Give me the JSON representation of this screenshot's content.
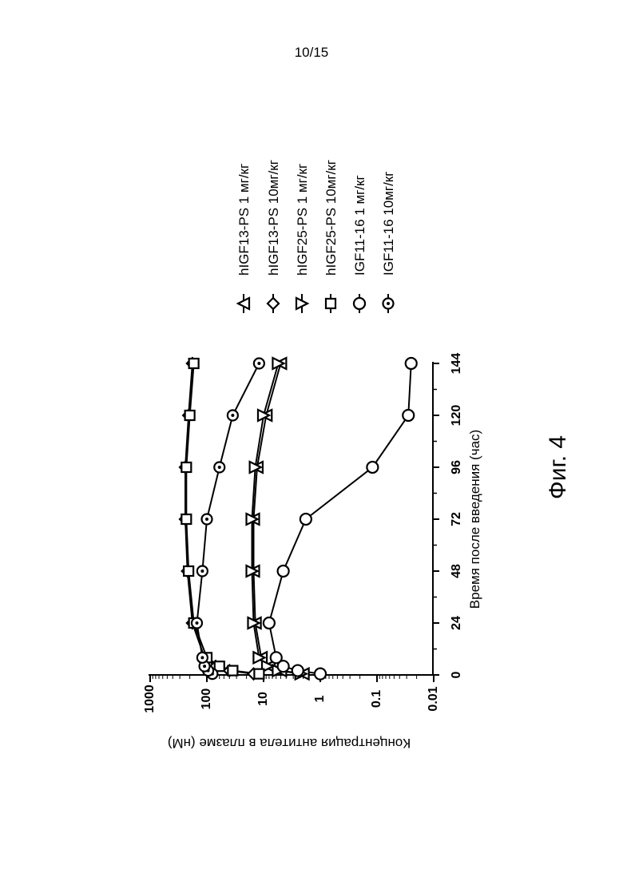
{
  "page_number": "10/15",
  "figure_label": "Фиг. 4",
  "chart_data": {
    "type": "line",
    "title": "",
    "xlabel": "Время после введения (час)",
    "ylabel": "Концентрация антитела в плазме (нМ)",
    "y_scale": "log",
    "xlim": [
      0,
      144
    ],
    "ylim": [
      0.01,
      1000
    ],
    "x_ticks": [
      "0",
      "24",
      "48",
      "72",
      "96",
      "120",
      "144"
    ],
    "y_ticks": [
      "0.01",
      "0.1",
      "1",
      "10",
      "100",
      "1000"
    ],
    "x_tick_values": [
      0,
      24,
      48,
      72,
      96,
      120,
      144
    ],
    "y_tick_values": [
      0.01,
      0.1,
      1,
      10,
      100,
      1000
    ],
    "legend_position": "right",
    "orientation": "rotated-90-ccw",
    "series": [
      {
        "name": "hIGF13-PS 1 мг/кг",
        "marker": "triangle-up",
        "x": [
          0.5,
          2,
          4,
          8,
          24,
          48,
          72,
          96,
          120,
          144
        ],
        "y": [
          2.0,
          5.0,
          8.0,
          11.0,
          14.0,
          15.0,
          15.0,
          13.0,
          9.0,
          5.0
        ]
      },
      {
        "name": "hIGF13-PS 10мг/кг",
        "marker": "diamond",
        "x": [
          0.5,
          2,
          4,
          8,
          24,
          48,
          72,
          96,
          120,
          144
        ],
        "y": [
          15.0,
          40.0,
          70.0,
          110.0,
          180.0,
          220.0,
          240.0,
          240.0,
          210.0,
          180.0
        ]
      },
      {
        "name": "hIGF25-PS 1 мг/кг",
        "marker": "triangle-down",
        "x": [
          0.5,
          2,
          4,
          8,
          24,
          48,
          72,
          96,
          120,
          144
        ],
        "y": [
          2.2,
          5.5,
          8.5,
          12.0,
          15.0,
          16.0,
          16.0,
          14.0,
          10.0,
          5.5
        ]
      },
      {
        "name": "hIGF25-PS 10мг/кг",
        "marker": "square",
        "x": [
          0.5,
          2,
          4,
          8,
          24,
          48,
          72,
          96,
          120,
          144
        ],
        "y": [
          12.0,
          35.0,
          60.0,
          100.0,
          170.0,
          210.0,
          230.0,
          230.0,
          200.0,
          170.0
        ]
      },
      {
        "name": "IGF11-16 1 мг/кг",
        "marker": "circle",
        "x": [
          0.5,
          2,
          4,
          8,
          24,
          48,
          72,
          96,
          120,
          144
        ],
        "y": [
          1.0,
          2.5,
          4.5,
          6.0,
          8.0,
          4.5,
          1.8,
          0.12,
          0.028,
          0.025
        ]
      },
      {
        "name": "IGF11-16 10мг/кг",
        "marker": "circle-dot",
        "x": [
          0.5,
          2,
          4,
          8,
          24,
          48,
          72,
          96,
          120,
          144
        ],
        "y": [
          80.0,
          95.0,
          110.0,
          120.0,
          150.0,
          120.0,
          100.0,
          60.0,
          35.0,
          12.0
        ]
      }
    ]
  }
}
